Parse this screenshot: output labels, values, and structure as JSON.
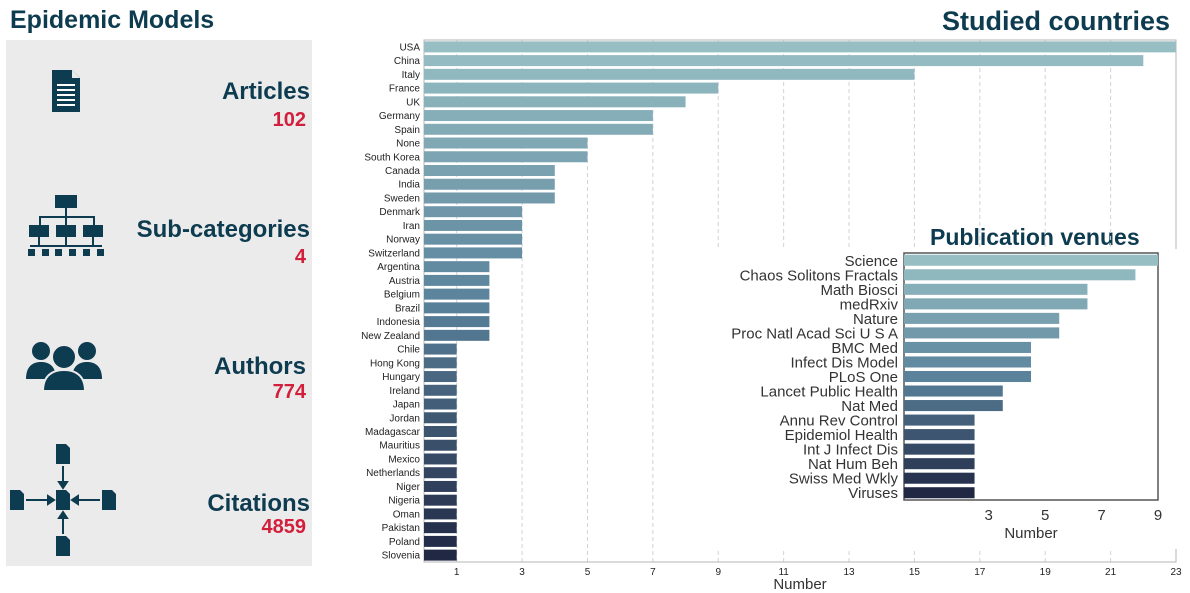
{
  "header": {
    "title": "Epidemic Models"
  },
  "stats": [
    {
      "label": "Articles",
      "value": "102",
      "icon": "document-icon"
    },
    {
      "label": "Sub-categories",
      "value": "4",
      "icon": "hierarchy-icon"
    },
    {
      "label": "Authors",
      "value": "774",
      "icon": "users-icon"
    },
    {
      "label": "Citations",
      "value": "4859",
      "icon": "citation-network-icon"
    }
  ],
  "colors": {
    "accent": "#d21f3c",
    "heading": "#0d3b4f",
    "panel_bg": "#ecebeb"
  },
  "chart_data": [
    {
      "type": "bar",
      "orientation": "horizontal",
      "title": "Studied countries",
      "xlabel": "Number",
      "ylabel": "",
      "xlim": [
        0,
        23
      ],
      "xticks": [
        1,
        3,
        5,
        7,
        9,
        11,
        13,
        15,
        17,
        19,
        21,
        23
      ],
      "grid": true,
      "categories": [
        "USA",
        "China",
        "Italy",
        "France",
        "UK",
        "Germany",
        "Spain",
        "None",
        "South Korea",
        "Canada",
        "India",
        "Sweden",
        "Denmark",
        "Iran",
        "Norway",
        "Switzerland",
        "Argentina",
        "Austria",
        "Belgium",
        "Brazil",
        "Indonesia",
        "New Zealand",
        "Chile",
        "Hong Kong",
        "Hungary",
        "Ireland",
        "Japan",
        "Jordan",
        "Madagascar",
        "Mauritius",
        "Mexico",
        "Netherlands",
        "Niger",
        "Nigeria",
        "Oman",
        "Pakistan",
        "Poland",
        "Slovenia"
      ],
      "values": [
        23,
        22,
        15,
        9,
        8,
        7,
        7,
        5,
        5,
        4,
        4,
        4,
        3,
        3,
        3,
        3,
        2,
        2,
        2,
        2,
        2,
        2,
        1,
        1,
        1,
        1,
        1,
        1,
        1,
        1,
        1,
        1,
        1,
        1,
        1,
        1,
        1,
        1
      ]
    },
    {
      "type": "bar",
      "orientation": "horizontal",
      "title": "Publication venues",
      "xlabel": "Number",
      "ylabel": "",
      "xlim": [
        0,
        9
      ],
      "xticks": [
        3,
        5,
        7,
        9
      ],
      "grid": false,
      "categories": [
        "Science",
        "Chaos Solitons Fractals",
        "Math Biosci",
        "medRxiv",
        "Nature",
        "Proc Natl Acad Sci U S A",
        "BMC Med",
        "Infect Dis Model",
        "PLoS One",
        "Lancet Public Health",
        "Nat Med",
        "Annu Rev Control",
        "Epidemiol Health",
        "Int J Infect Dis",
        "Nat Hum Beh",
        "Swiss Med Wkly",
        "Viruses"
      ],
      "values": [
        9,
        8.2,
        6.5,
        6.5,
        5.5,
        5.5,
        4.5,
        4.5,
        4.5,
        3.5,
        3.5,
        2.5,
        2.5,
        2.5,
        2.5,
        2.5,
        2.5
      ]
    }
  ]
}
